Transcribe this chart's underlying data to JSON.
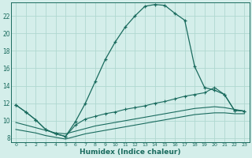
{
  "xlabel": "Humidex (Indice chaleur)",
  "background_color": "#d4eeea",
  "line_color": "#1a6b5e",
  "grid_color": "#b0d8d0",
  "xlim": [
    -0.5,
    23.5
  ],
  "ylim": [
    7.5,
    23.5
  ],
  "xticks": [
    0,
    1,
    2,
    3,
    4,
    5,
    6,
    7,
    8,
    9,
    10,
    11,
    12,
    13,
    14,
    15,
    16,
    17,
    18,
    19,
    20,
    21,
    22,
    23
  ],
  "yticks": [
    8,
    10,
    12,
    14,
    16,
    18,
    20,
    22
  ],
  "series1_x": [
    0,
    1,
    2,
    3,
    4,
    5,
    6,
    7,
    8,
    9,
    10,
    11,
    12,
    13,
    14,
    15,
    16,
    17,
    18,
    19,
    20,
    21,
    22,
    23
  ],
  "series1_y": [
    11.8,
    11.0,
    10.1,
    9.0,
    8.5,
    8.2,
    9.9,
    12.0,
    14.5,
    17.0,
    19.0,
    20.7,
    22.0,
    23.1,
    23.3,
    23.2,
    22.3,
    21.5,
    16.2,
    13.8,
    13.5,
    13.0,
    11.2,
    11.1
  ],
  "series2_x": [
    0,
    1,
    2,
    3,
    4,
    5,
    6,
    7,
    8,
    9,
    10,
    11,
    12,
    13,
    14,
    15,
    16,
    17,
    18,
    19,
    20,
    21,
    22,
    23
  ],
  "series2_y": [
    11.8,
    11.0,
    10.1,
    9.0,
    8.5,
    8.2,
    9.5,
    10.2,
    10.5,
    10.8,
    11.0,
    11.3,
    11.5,
    11.7,
    12.0,
    12.2,
    12.5,
    12.8,
    13.0,
    13.2,
    13.8,
    13.0,
    11.2,
    11.1
  ],
  "series3_x": [
    0,
    1,
    2,
    3,
    4,
    5,
    6,
    7,
    8,
    9,
    10,
    11,
    12,
    13,
    14,
    15,
    16,
    17,
    18,
    19,
    20,
    21,
    22,
    23
  ],
  "series3_y": [
    9.8,
    9.5,
    9.2,
    8.9,
    8.6,
    8.5,
    8.8,
    9.1,
    9.4,
    9.6,
    9.8,
    10.0,
    10.2,
    10.4,
    10.6,
    10.8,
    11.0,
    11.2,
    11.4,
    11.5,
    11.6,
    11.5,
    11.3,
    11.1
  ],
  "series4_x": [
    0,
    1,
    2,
    3,
    4,
    5,
    6,
    7,
    8,
    9,
    10,
    11,
    12,
    13,
    14,
    15,
    16,
    17,
    18,
    19,
    20,
    21,
    22,
    23
  ],
  "series4_y": [
    9.0,
    8.8,
    8.6,
    8.3,
    8.1,
    7.9,
    8.2,
    8.5,
    8.7,
    8.9,
    9.1,
    9.3,
    9.5,
    9.7,
    9.9,
    10.1,
    10.3,
    10.5,
    10.7,
    10.8,
    10.9,
    10.9,
    10.8,
    10.8
  ]
}
